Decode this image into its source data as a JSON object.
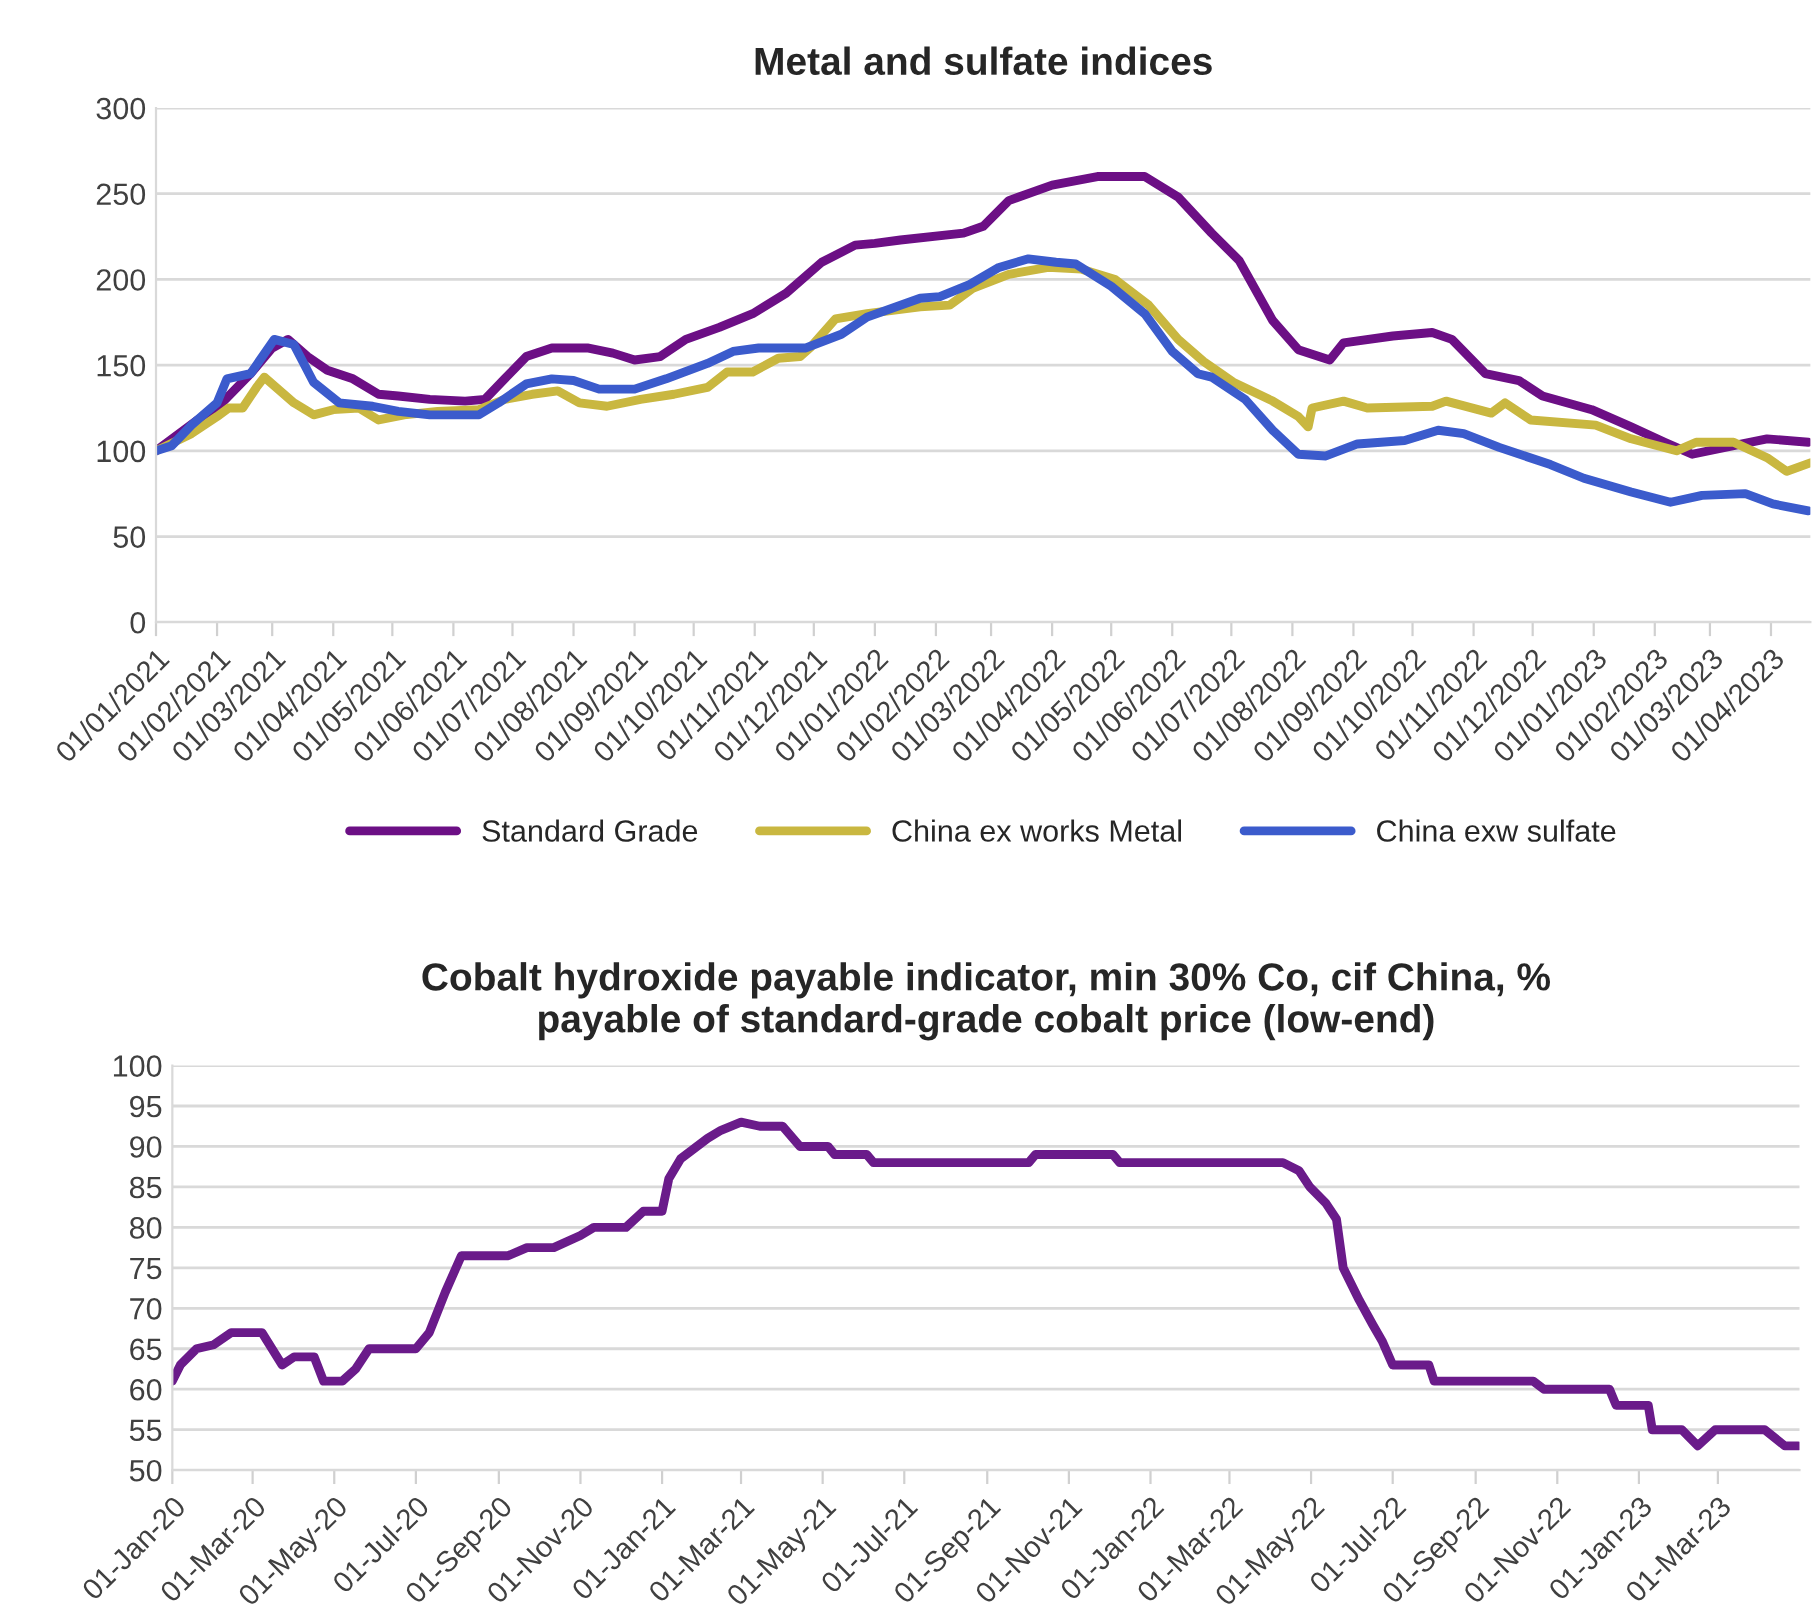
{
  "chart_data": [
    {
      "type": "line",
      "title": "Metal and sulfate indices",
      "legend": "bottom",
      "grid": "y",
      "marker": "none",
      "line_style": "solid",
      "xlim": [
        "2021-01-01",
        "2023-04-21"
      ],
      "ylim": [
        0,
        300
      ],
      "yticks": [
        0,
        50,
        100,
        150,
        200,
        250,
        300
      ],
      "xticks": [
        {
          "value": "2021-01-01",
          "label": "01/01/2021"
        },
        {
          "value": "2021-02-01",
          "label": "01/02/2021"
        },
        {
          "value": "2021-03-01",
          "label": "01/03/2021"
        },
        {
          "value": "2021-04-01",
          "label": "01/04/2021"
        },
        {
          "value": "2021-05-01",
          "label": "01/05/2021"
        },
        {
          "value": "2021-06-01",
          "label": "01/06/2021"
        },
        {
          "value": "2021-07-01",
          "label": "01/07/2021"
        },
        {
          "value": "2021-08-01",
          "label": "01/08/2021"
        },
        {
          "value": "2021-09-01",
          "label": "01/09/2021"
        },
        {
          "value": "2021-10-01",
          "label": "01/10/2021"
        },
        {
          "value": "2021-11-01",
          "label": "01/11/2021"
        },
        {
          "value": "2021-12-01",
          "label": "01/12/2021"
        },
        {
          "value": "2022-01-01",
          "label": "01/01/2022"
        },
        {
          "value": "2022-02-01",
          "label": "01/02/2022"
        },
        {
          "value": "2022-03-01",
          "label": "01/03/2022"
        },
        {
          "value": "2022-04-01",
          "label": "01/04/2022"
        },
        {
          "value": "2022-05-01",
          "label": "01/05/2022"
        },
        {
          "value": "2022-06-01",
          "label": "01/06/2022"
        },
        {
          "value": "2022-07-01",
          "label": "01/07/2022"
        },
        {
          "value": "2022-08-01",
          "label": "01/08/2022"
        },
        {
          "value": "2022-09-01",
          "label": "01/09/2022"
        },
        {
          "value": "2022-10-01",
          "label": "01/10/2022"
        },
        {
          "value": "2022-11-01",
          "label": "01/11/2022"
        },
        {
          "value": "2022-12-01",
          "label": "01/12/2022"
        },
        {
          "value": "2023-01-01",
          "label": "01/01/2023"
        },
        {
          "value": "2023-02-01",
          "label": "01/02/2023"
        },
        {
          "value": "2023-03-01",
          "label": "01/03/2023"
        },
        {
          "value": "2023-04-01",
          "label": "01/04/2023"
        }
      ],
      "series": [
        {
          "name": "Standard Grade",
          "color": "#6c0f85",
          "x": [
            "2021-01-01",
            "2021-01-22",
            "2021-02-01",
            "2021-02-18",
            "2021-03-01",
            "2021-03-09",
            "2021-03-19",
            "2021-03-29",
            "2021-04-11",
            "2021-04-24",
            "2021-05-04",
            "2021-05-20",
            "2021-06-07",
            "2021-06-17",
            "2021-06-27",
            "2021-07-08",
            "2021-07-21",
            "2021-08-08",
            "2021-08-21",
            "2021-09-01",
            "2021-09-14",
            "2021-09-27",
            "2021-10-14",
            "2021-10-31",
            "2021-11-17",
            "2021-12-05",
            "2021-12-22",
            "2022-01-01",
            "2022-01-14",
            "2022-02-15",
            "2022-02-25",
            "2022-03-10",
            "2022-04-01",
            "2022-04-24",
            "2022-05-18",
            "2022-06-04",
            "2022-06-21",
            "2022-07-05",
            "2022-07-22",
            "2022-08-04",
            "2022-08-20",
            "2022-08-27",
            "2022-09-21",
            "2022-10-11",
            "2022-10-21",
            "2022-11-07",
            "2022-11-24",
            "2022-12-06",
            "2022-12-31",
            "2023-01-20",
            "2023-02-06",
            "2023-02-20",
            "2023-03-13",
            "2023-03-30",
            "2023-04-20"
          ],
          "values": [
            100,
            118,
            125,
            145,
            160,
            165,
            155,
            147,
            142,
            133,
            132,
            130,
            129,
            130,
            142,
            155,
            160,
            160,
            157,
            153,
            155,
            165,
            172,
            180,
            192,
            210,
            220,
            221,
            223,
            227,
            231,
            246,
            255,
            260,
            260,
            248,
            227,
            211,
            176,
            159,
            153,
            163,
            167,
            169,
            165,
            145,
            141,
            132,
            124,
            114,
            105,
            98,
            103,
            107,
            105
          ]
        },
        {
          "name": "China ex works Metal",
          "color": "#c9b740",
          "x": [
            "2021-01-01",
            "2021-01-19",
            "2021-02-01",
            "2021-02-07",
            "2021-02-14",
            "2021-02-21",
            "2021-02-25",
            "2021-03-05",
            "2021-03-12",
            "2021-03-22",
            "2021-04-01",
            "2021-04-14",
            "2021-04-24",
            "2021-05-07",
            "2021-05-24",
            "2021-06-14",
            "2021-06-27",
            "2021-07-11",
            "2021-07-24",
            "2021-08-04",
            "2021-08-18",
            "2021-09-04",
            "2021-09-21",
            "2021-10-08",
            "2021-10-18",
            "2021-10-31",
            "2021-11-13",
            "2021-11-24",
            "2021-11-29",
            "2021-12-12",
            "2021-12-28",
            "2022-01-24",
            "2022-02-08",
            "2022-02-20",
            "2022-03-10",
            "2022-03-30",
            "2022-04-16",
            "2022-05-03",
            "2022-05-20",
            "2022-06-04",
            "2022-06-17",
            "2022-07-02",
            "2022-07-22",
            "2022-08-04",
            "2022-08-09",
            "2022-08-11",
            "2022-08-27",
            "2022-09-08",
            "2022-10-11",
            "2022-10-18",
            "2022-11-10",
            "2022-11-17",
            "2022-11-30",
            "2023-01-02",
            "2023-01-20",
            "2023-02-12",
            "2023-02-22",
            "2023-03-13",
            "2023-03-30",
            "2023-04-09",
            "2023-04-21"
          ],
          "values": [
            100,
            110,
            120,
            125,
            125,
            137,
            143,
            135,
            128,
            121,
            124,
            125,
            118,
            121,
            123,
            124,
            130,
            133,
            135,
            128,
            126,
            130,
            133,
            137,
            146,
            146,
            154,
            155,
            160,
            177,
            180,
            184,
            185,
            195,
            203,
            207,
            206,
            200,
            185,
            165,
            152,
            140,
            129,
            120,
            114,
            125,
            129,
            125,
            126,
            129,
            122,
            128,
            118,
            115,
            107,
            100,
            105,
            105,
            96,
            88,
            93
          ]
        },
        {
          "name": "China exw sulfate",
          "color": "#3b5bcc",
          "x": [
            "2021-01-01",
            "2021-01-09",
            "2021-01-19",
            "2021-02-01",
            "2021-02-06",
            "2021-02-18",
            "2021-03-02",
            "2021-03-12",
            "2021-03-22",
            "2021-04-04",
            "2021-04-21",
            "2021-05-04",
            "2021-05-20",
            "2021-06-14",
            "2021-06-24",
            "2021-07-08",
            "2021-07-21",
            "2021-08-01",
            "2021-08-14",
            "2021-09-01",
            "2021-09-17",
            "2021-10-08",
            "2021-10-21",
            "2021-11-03",
            "2021-11-27",
            "2021-12-15",
            "2021-12-28",
            "2022-01-24",
            "2022-02-03",
            "2022-02-18",
            "2022-03-05",
            "2022-03-20",
            "2022-04-03",
            "2022-04-13",
            "2022-05-01",
            "2022-05-18",
            "2022-06-01",
            "2022-06-14",
            "2022-06-21",
            "2022-07-08",
            "2022-07-22",
            "2022-08-04",
            "2022-08-18",
            "2022-09-03",
            "2022-09-27",
            "2022-10-14",
            "2022-10-27",
            "2022-11-14",
            "2022-12-10",
            "2022-12-27",
            "2023-01-20",
            "2023-02-09",
            "2023-02-25",
            "2023-03-19",
            "2023-04-02",
            "2023-04-20"
          ],
          "values": [
            100,
            103,
            115,
            128,
            142,
            145,
            165,
            162,
            140,
            128,
            126,
            123,
            121,
            121,
            128,
            139,
            142,
            141,
            136,
            136,
            142,
            151,
            158,
            160,
            160,
            168,
            178,
            189,
            190,
            197,
            207,
            212,
            210,
            209,
            196,
            180,
            158,
            145,
            143,
            130,
            112,
            98,
            97,
            104,
            106,
            112,
            110,
            102,
            92,
            84,
            76,
            70,
            74,
            75,
            69,
            65
          ]
        }
      ]
    },
    {
      "type": "line",
      "title": "Cobalt hydroxide payable indicator, min 30% Co, cif China, %\npayable of standard-grade cobalt price (low-end)",
      "grid": "y",
      "marker": "none",
      "line_style": "solid",
      "xlim": [
        "2020-01-01",
        "2023-05-01"
      ],
      "ylim": [
        50,
        100
      ],
      "yticks": [
        50,
        55,
        60,
        65,
        70,
        75,
        80,
        85,
        90,
        95,
        100
      ],
      "xticks": [
        {
          "value": "2020-01-01",
          "label": "01-Jan-20"
        },
        {
          "value": "2020-03-01",
          "label": "01-Mar-20"
        },
        {
          "value": "2020-05-01",
          "label": "01-May-20"
        },
        {
          "value": "2020-07-01",
          "label": "01-Jul-20"
        },
        {
          "value": "2020-09-01",
          "label": "01-Sep-20"
        },
        {
          "value": "2020-11-01",
          "label": "01-Nov-20"
        },
        {
          "value": "2021-01-01",
          "label": "01-Jan-21"
        },
        {
          "value": "2021-03-01",
          "label": "01-Mar-21"
        },
        {
          "value": "2021-05-01",
          "label": "01-May-21"
        },
        {
          "value": "2021-07-01",
          "label": "01-Jul-21"
        },
        {
          "value": "2021-09-01",
          "label": "01-Sep-21"
        },
        {
          "value": "2021-11-01",
          "label": "01-Nov-21"
        },
        {
          "value": "2022-01-01",
          "label": "01-Jan-22"
        },
        {
          "value": "2022-03-01",
          "label": "01-Mar-22"
        },
        {
          "value": "2022-05-01",
          "label": "01-May-22"
        },
        {
          "value": "2022-07-01",
          "label": "01-Jul-22"
        },
        {
          "value": "2022-09-01",
          "label": "01-Sep-22"
        },
        {
          "value": "2022-11-01",
          "label": "01-Nov-22"
        },
        {
          "value": "2023-01-01",
          "label": "01-Jan-23"
        },
        {
          "value": "2023-03-01",
          "label": "01-Mar-23"
        }
      ],
      "series": [
        {
          "color": "#6a1b8a",
          "x": [
            "2020-01-01",
            "2020-01-07",
            "2020-01-19",
            "2020-02-01",
            "2020-02-14",
            "2020-03-08",
            "2020-03-23",
            "2020-04-01",
            "2020-04-16",
            "2020-04-23",
            "2020-05-07",
            "2020-05-17",
            "2020-05-27",
            "2020-07-01",
            "2020-07-11",
            "2020-07-23",
            "2020-08-04",
            "2020-09-08",
            "2020-09-22",
            "2020-10-12",
            "2020-11-01",
            "2020-11-11",
            "2020-12-05",
            "2020-12-18",
            "2021-01-01",
            "2021-01-06",
            "2021-01-15",
            "2021-02-04",
            "2021-02-14",
            "2021-03-01",
            "2021-03-15",
            "2021-04-01",
            "2021-04-14",
            "2021-05-05",
            "2021-05-10",
            "2021-06-03",
            "2021-06-08",
            "2021-10-02",
            "2021-10-07",
            "2021-12-04",
            "2021-12-09",
            "2022-04-10",
            "2022-04-22",
            "2022-04-30",
            "2022-05-12",
            "2022-05-20",
            "2022-05-25",
            "2022-06-06",
            "2022-06-16",
            "2022-06-23",
            "2022-07-01",
            "2022-07-28",
            "2022-08-01",
            "2022-10-14",
            "2022-10-22",
            "2022-12-10",
            "2022-12-15",
            "2023-01-08",
            "2023-01-11",
            "2023-02-02",
            "2023-02-14",
            "2023-02-27",
            "2023-04-05",
            "2023-04-20",
            "2023-04-30"
          ],
          "values": [
            61,
            63,
            65,
            65.5,
            67,
            67,
            63,
            64,
            64,
            61,
            61,
            62.5,
            65,
            65,
            67,
            72,
            76.5,
            76.5,
            77.5,
            77.5,
            79,
            80,
            80,
            82,
            82,
            86,
            88.5,
            91,
            92,
            93,
            92.5,
            92.5,
            90,
            90,
            89,
            89,
            88,
            88,
            89,
            89,
            88,
            88,
            87,
            85,
            83,
            81,
            75,
            71,
            68,
            66,
            63,
            63,
            61,
            61,
            60,
            60,
            58,
            58,
            55,
            55,
            53,
            55,
            55,
            53,
            53
          ]
        }
      ]
    }
  ]
}
